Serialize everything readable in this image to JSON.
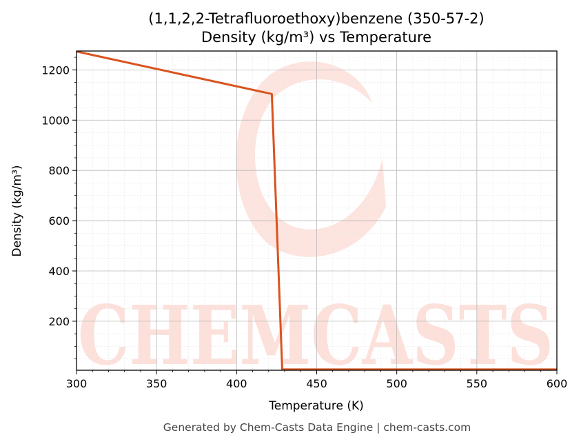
{
  "chart_data": {
    "type": "line",
    "title": "(1,1,2,2-Tetrafluoroethoxy)benzene (350-57-2)",
    "subtitle": "Density (kg/m³) vs Temperature",
    "xlabel": "Temperature (K)",
    "ylabel": "Density (kg/m³)",
    "xlim": [
      300,
      600
    ],
    "ylim": [
      5,
      1275
    ],
    "xticks": [
      300,
      350,
      400,
      450,
      500,
      550,
      600
    ],
    "yticks": [
      200,
      400,
      600,
      800,
      1000,
      1200
    ],
    "grid": true,
    "series": [
      {
        "color": "#d9531e",
        "x": [
          300,
          422,
          428.5,
          450,
          500,
          550,
          600
        ],
        "y": [
          1273,
          1104,
          8,
          8,
          8,
          8,
          8
        ]
      }
    ]
  },
  "watermark": {
    "text": "CHEMCASTS",
    "color": "#fde0da"
  },
  "footer": "Generated by Chem-Casts Data Engine | chem-casts.com"
}
